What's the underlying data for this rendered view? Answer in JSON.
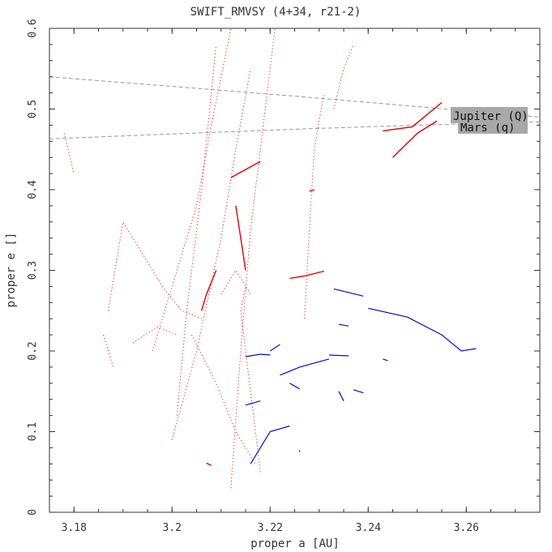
{
  "chart_data": {
    "type": "scatter",
    "title": "SWIFT_RMVSY (4+34, r21-2)",
    "xlabel": "proper a [AU]",
    "ylabel": "proper e []",
    "xlim": [
      3.175,
      3.275
    ],
    "ylim": [
      0,
      0.6
    ],
    "x_ticks": [
      3.18,
      3.2,
      3.22,
      3.24,
      3.26
    ],
    "x_tick_labels": [
      "3.18",
      "3.2",
      "3.22",
      "3.24",
      "3.26"
    ],
    "y_ticks": [
      0,
      0.1,
      0.2,
      0.3,
      0.4,
      0.5,
      0.6
    ],
    "y_tick_labels": [
      "0",
      "0.1",
      "0.2",
      "0.3",
      "0.4",
      "0.5",
      "0.6"
    ],
    "grid": false,
    "colors": {
      "red_series": "#e00000",
      "blue_series": "#0010d0",
      "reference_curves": "#999999",
      "annotation_box": "#a8a8a8"
    },
    "reference_curves": [
      {
        "label": "Jupiter (Q)",
        "points": [
          [
            3.175,
            0.54
          ],
          [
            3.2,
            0.528
          ],
          [
            3.225,
            0.516
          ],
          [
            3.25,
            0.503
          ],
          [
            3.275,
            0.49
          ]
        ]
      },
      {
        "label": "Mars (q)",
        "points": [
          [
            3.175,
            0.463
          ],
          [
            3.2,
            0.469
          ],
          [
            3.225,
            0.475
          ],
          [
            3.25,
            0.48
          ],
          [
            3.275,
            0.484
          ]
        ]
      }
    ],
    "series": [
      {
        "color": "red",
        "style": "dotted",
        "tracks": [
          [
            [
              3.196,
              0.2
            ],
            [
              3.2,
              0.28
            ],
            [
              3.205,
              0.38
            ],
            [
              3.208,
              0.48
            ],
            [
              3.212,
              0.6
            ]
          ],
          [
            [
              3.201,
              0.12
            ],
            [
              3.203,
              0.25
            ],
            [
              3.206,
              0.4
            ],
            [
              3.209,
              0.58
            ]
          ],
          [
            [
              3.2,
              0.09
            ],
            [
              3.205,
              0.2
            ],
            [
              3.21,
              0.34
            ],
            [
              3.213,
              0.45
            ],
            [
              3.216,
              0.55
            ]
          ],
          [
            [
              3.212,
              0.03
            ],
            [
              3.214,
              0.2
            ],
            [
              3.216,
              0.35
            ],
            [
              3.219,
              0.5
            ],
            [
              3.221,
              0.6
            ]
          ],
          [
            [
              3.218,
              0.05
            ],
            [
              3.216,
              0.15
            ],
            [
              3.214,
              0.25
            ],
            [
              3.215,
              0.28
            ]
          ],
          [
            [
              3.227,
              0.24
            ],
            [
              3.228,
              0.35
            ],
            [
              3.229,
              0.45
            ],
            [
              3.231,
              0.52
            ]
          ],
          [
            [
              3.233,
              0.5
            ],
            [
              3.235,
              0.55
            ],
            [
              3.237,
              0.58
            ]
          ],
          [
            [
              3.187,
              0.25
            ],
            [
              3.19,
              0.36
            ],
            [
              3.194,
              0.32
            ],
            [
              3.198,
              0.28
            ],
            [
              3.202,
              0.25
            ],
            [
              3.206,
              0.24
            ]
          ],
          [
            [
              3.186,
              0.22
            ],
            [
              3.188,
              0.18
            ]
          ],
          [
            [
              3.178,
              0.47
            ],
            [
              3.18,
              0.42
            ]
          ],
          [
            [
              3.192,
              0.21
            ],
            [
              3.197,
              0.23
            ],
            [
              3.201,
              0.22
            ]
          ],
          [
            [
              3.204,
              0.22
            ],
            [
              3.209,
              0.16
            ],
            [
              3.213,
              0.1
            ],
            [
              3.217,
              0.06
            ]
          ],
          [
            [
              3.21,
              0.27
            ],
            [
              3.213,
              0.3
            ],
            [
              3.216,
              0.27
            ]
          ]
        ],
        "solid_clusters": [
          [
            [
              3.212,
              0.415
            ],
            [
              3.215,
              0.425
            ],
            [
              3.218,
              0.435
            ]
          ],
          [
            [
              3.224,
              0.29
            ],
            [
              3.227,
              0.293
            ],
            [
              3.231,
              0.299
            ]
          ],
          [
            [
              3.228,
              0.398
            ],
            [
              3.229,
              0.4
            ]
          ],
          [
            [
              3.213,
              0.38
            ],
            [
              3.214,
              0.34
            ],
            [
              3.215,
              0.3
            ]
          ],
          [
            [
              3.206,
              0.25
            ],
            [
              3.207,
              0.27
            ],
            [
              3.209,
              0.3
            ]
          ],
          [
            [
              3.207,
              0.061
            ],
            [
              3.208,
              0.058
            ]
          ],
          [
            [
              3.243,
              0.473
            ],
            [
              3.249,
              0.478
            ],
            [
              3.255,
              0.508
            ]
          ],
          [
            [
              3.245,
              0.44
            ],
            [
              3.25,
              0.47
            ],
            [
              3.254,
              0.485
            ]
          ]
        ]
      },
      {
        "color": "blue",
        "style": "solid",
        "tracks": [
          [
            [
              3.233,
              0.277
            ],
            [
              3.239,
              0.268
            ]
          ],
          [
            [
              3.24,
              0.253
            ],
            [
              3.248,
              0.242
            ],
            [
              3.255,
              0.22
            ],
            [
              3.259,
              0.2
            ],
            [
              3.262,
              0.203
            ]
          ],
          [
            [
              3.234,
              0.233
            ],
            [
              3.236,
              0.231
            ]
          ],
          [
            [
              3.215,
              0.193
            ],
            [
              3.218,
              0.196
            ],
            [
              3.22,
              0.195
            ]
          ],
          [
            [
              3.22,
              0.2
            ],
            [
              3.222,
              0.208
            ]
          ],
          [
            [
              3.222,
              0.17
            ],
            [
              3.226,
              0.18
            ],
            [
              3.232,
              0.19
            ]
          ],
          [
            [
              3.232,
              0.195
            ],
            [
              3.236,
              0.194
            ]
          ],
          [
            [
              3.243,
              0.19
            ],
            [
              3.244,
              0.188
            ]
          ],
          [
            [
              3.224,
              0.16
            ],
            [
              3.226,
              0.153
            ]
          ],
          [
            [
              3.234,
              0.15
            ],
            [
              3.235,
              0.138
            ]
          ],
          [
            [
              3.237,
              0.152
            ],
            [
              3.239,
              0.148
            ]
          ],
          [
            [
              3.215,
              0.133
            ],
            [
              3.218,
              0.138
            ]
          ],
          [
            [
              3.216,
              0.06
            ],
            [
              3.218,
              0.08
            ],
            [
              3.22,
              0.1
            ],
            [
              3.224,
              0.107
            ]
          ],
          [
            [
              3.226,
              0.077
            ],
            [
              3.226,
              0.075
            ]
          ]
        ]
      }
    ]
  }
}
